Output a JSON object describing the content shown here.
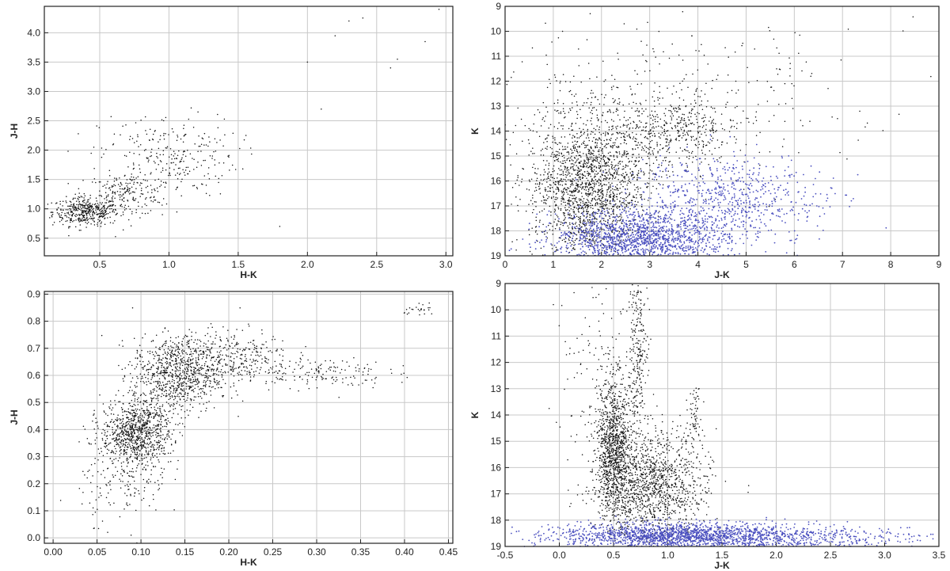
{
  "colors": {
    "black_points": "#111111",
    "blue_points": "#4a4fbf",
    "grid": "#c8c8c8"
  },
  "chart_data": [
    {
      "type": "scatter",
      "id": "p1",
      "title": "",
      "xlabel": "H-K",
      "ylabel": "J-H",
      "xlim": [
        0.1,
        3.05
      ],
      "ylim": [
        0.2,
        4.45
      ],
      "y_inverted": false,
      "grid": true,
      "x_ticks": [
        0.5,
        1.0,
        1.5,
        2.0,
        2.5,
        3.0
      ],
      "x_tick_labels": [
        "0.5",
        "1.0",
        "1.5",
        "2.0",
        "2.5",
        "3.0"
      ],
      "y_ticks": [
        0.5,
        1.0,
        1.5,
        2.0,
        2.5,
        3.0,
        3.5,
        4.0
      ],
      "y_tick_labels": [
        "0.5",
        "1.0",
        "1.5",
        "2.0",
        "2.5",
        "3.0",
        "3.5",
        "4.0"
      ],
      "series": [
        {
          "color": "black",
          "clusters": [
            {
              "x": 0.4,
              "y": 0.95,
              "sx": 0.12,
              "sy": 0.12,
              "n": 420
            },
            {
              "x": 0.7,
              "y": 1.25,
              "sx": 0.15,
              "sy": 0.18,
              "n": 200
            },
            {
              "x": 1.0,
              "y": 1.9,
              "sx": 0.25,
              "sy": 0.35,
              "n": 260
            }
          ],
          "points": [
            [
              2.3,
              4.2
            ],
            [
              2.4,
              4.25
            ],
            [
              2.95,
              4.4
            ],
            [
              2.6,
              3.4
            ],
            [
              2.65,
              3.55
            ],
            [
              2.85,
              3.85
            ],
            [
              2.1,
              2.7
            ],
            [
              1.8,
              0.7
            ],
            [
              2.0,
              3.5
            ],
            [
              2.2,
              3.95
            ]
          ]
        }
      ]
    },
    {
      "type": "scatter",
      "id": "p2",
      "title": "",
      "xlabel": "J-K",
      "ylabel": "K",
      "xlim": [
        0,
        9
      ],
      "ylim": [
        9,
        19
      ],
      "y_inverted": true,
      "grid": true,
      "x_ticks": [
        0,
        1,
        2,
        3,
        4,
        5,
        6,
        7,
        8,
        9
      ],
      "x_tick_labels": [
        "0",
        "1",
        "2",
        "3",
        "4",
        "5",
        "6",
        "7",
        "8",
        "9"
      ],
      "y_ticks": [
        9,
        10,
        11,
        12,
        13,
        14,
        15,
        16,
        17,
        18,
        19
      ],
      "y_tick_labels": [
        "9",
        "10",
        "11",
        "12",
        "13",
        "14",
        "15",
        "16",
        "17",
        "18",
        "19"
      ],
      "series": [
        {
          "color": "black",
          "clusters": [
            {
              "x": 1.7,
              "y": 16.2,
              "sx": 0.6,
              "sy": 1.4,
              "n": 1800
            },
            {
              "x": 3.4,
              "y": 13.9,
              "sx": 0.8,
              "sy": 0.7,
              "n": 500
            },
            {
              "x": 3.2,
              "y": 12.3,
              "sx": 2.2,
              "sy": 2.0,
              "n": 300
            }
          ]
        },
        {
          "color": "blue",
          "clusters": [
            {
              "x": 2.8,
              "y": 18.3,
              "sx": 0.9,
              "sy": 0.55,
              "n": 1500
            },
            {
              "x": 4.6,
              "y": 16.8,
              "sx": 1.0,
              "sy": 0.9,
              "n": 700
            }
          ]
        }
      ]
    },
    {
      "type": "scatter",
      "id": "p3",
      "title": "",
      "xlabel": "H-K",
      "ylabel": "J-H",
      "xlim": [
        -0.01,
        0.455
      ],
      "ylim": [
        -0.02,
        0.91
      ],
      "y_inverted": false,
      "grid": true,
      "x_ticks": [
        0.0,
        0.05,
        0.1,
        0.15,
        0.2,
        0.25,
        0.3,
        0.35,
        0.4,
        0.45
      ],
      "x_tick_labels": [
        "0.00",
        "0.05",
        "0.10",
        "0.15",
        "0.20",
        "0.25",
        "0.30",
        "0.35",
        "0.40",
        "0.45"
      ],
      "y_ticks": [
        0.0,
        0.1,
        0.2,
        0.3,
        0.4,
        0.5,
        0.6,
        0.7,
        0.8,
        0.9
      ],
      "y_tick_labels": [
        "0.0",
        "0.1",
        "0.2",
        "0.3",
        "0.4",
        "0.5",
        "0.6",
        "0.7",
        "0.8",
        "0.9"
      ],
      "series": [
        {
          "color": "black",
          "clusters": [
            {
              "x": 0.095,
              "y": 0.39,
              "sx": 0.02,
              "sy": 0.06,
              "n": 900
            },
            {
              "x": 0.14,
              "y": 0.6,
              "sx": 0.025,
              "sy": 0.07,
              "n": 800
            },
            {
              "x": 0.2,
              "y": 0.67,
              "sx": 0.035,
              "sy": 0.05,
              "n": 350
            },
            {
              "x": 0.3,
              "y": 0.61,
              "sx": 0.04,
              "sy": 0.03,
              "n": 150
            },
            {
              "x": 0.08,
              "y": 0.2,
              "sx": 0.025,
              "sy": 0.07,
              "n": 150
            },
            {
              "x": 0.42,
              "y": 0.84,
              "sx": 0.01,
              "sy": 0.01,
              "n": 25
            }
          ]
        }
      ]
    },
    {
      "type": "scatter",
      "id": "p4",
      "title": "",
      "xlabel": "J-K",
      "ylabel": "K",
      "xlim": [
        -0.5,
        3.5
      ],
      "ylim": [
        9,
        19
      ],
      "y_inverted": true,
      "grid": true,
      "x_ticks": [
        -0.5,
        0.0,
        0.5,
        1.0,
        1.5,
        2.0,
        2.5,
        3.0,
        3.5
      ],
      "x_tick_labels": [
        "-0.5",
        "0.0",
        "0.5",
        "1.0",
        "1.5",
        "2.0",
        "2.5",
        "3.0",
        "3.5"
      ],
      "y_ticks": [
        9,
        10,
        11,
        12,
        13,
        14,
        15,
        16,
        17,
        18,
        19
      ],
      "y_tick_labels": [
        "9",
        "10",
        "11",
        "12",
        "13",
        "14",
        "15",
        "16",
        "17",
        "18",
        "19"
      ],
      "series": [
        {
          "color": "black",
          "clusters": [
            {
              "x": 0.5,
              "y": 15.2,
              "sx": 0.08,
              "sy": 1.3,
              "n": 1000
            },
            {
              "x": 0.85,
              "y": 16.6,
              "sx": 0.25,
              "sy": 1.0,
              "n": 1300
            },
            {
              "x": 0.72,
              "y": 11.5,
              "sx": 0.05,
              "sy": 1.5,
              "n": 250
            },
            {
              "x": 1.25,
              "y": 14.2,
              "sx": 0.03,
              "sy": 0.6,
              "n": 60
            },
            {
              "x": 0.3,
              "y": 12.5,
              "sx": 0.2,
              "sy": 2.0,
              "n": 120
            }
          ]
        },
        {
          "color": "blue",
          "clusters": [
            {
              "x": 1.1,
              "y": 18.6,
              "sx": 0.55,
              "sy": 0.25,
              "n": 1700
            },
            {
              "x": 2.2,
              "y": 18.7,
              "sx": 0.6,
              "sy": 0.25,
              "n": 400
            }
          ]
        }
      ]
    }
  ]
}
